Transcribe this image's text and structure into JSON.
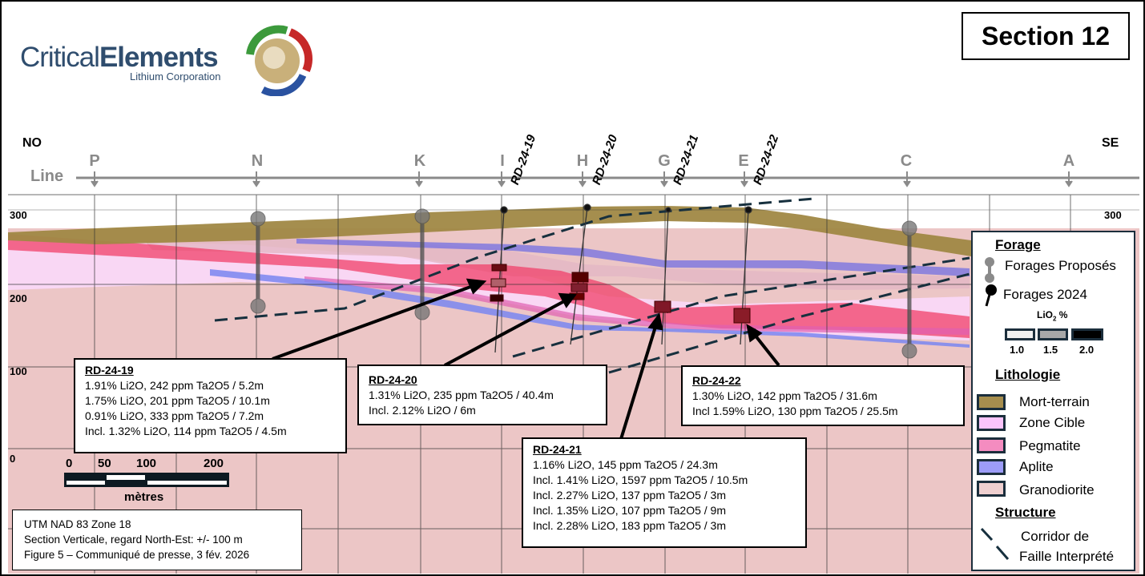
{
  "logo": {
    "name_part1": "Critical",
    "name_part2": "Elements",
    "subtitle": "Lithium Corporation"
  },
  "title": "Section 12",
  "directions": {
    "left": "NO",
    "right": "SE"
  },
  "line_axis": {
    "label": "Line",
    "letters": [
      "P",
      "N",
      "K",
      "I",
      "H",
      "G",
      "E",
      "C",
      "A"
    ]
  },
  "holes": [
    "RD-24-19",
    "RD-24-20",
    "RD-24-21",
    "RD-24-22"
  ],
  "elevations": {
    "left": [
      "300",
      "200",
      "100",
      "0"
    ],
    "right": "300"
  },
  "callouts": [
    {
      "title": "RD-24-19",
      "lines": [
        "1.91% Li2O, 242 ppm Ta2O5 / 5.2m",
        "1.75% Li2O, 201 ppm Ta2O5 / 10.1m",
        "0.91% Li2O, 333 ppm Ta2O5 / 7.2m",
        "Incl. 1.32% Li2O, 114 ppm Ta2O5 / 4.5m"
      ]
    },
    {
      "title": "RD-24-20",
      "lines": [
        "1.31% Li2O, 235 ppm Ta2O5 / 40.4m",
        "Incl. 2.12% Li2O / 6m"
      ]
    },
    {
      "title": "RD-24-21",
      "lines": [
        "1.16% Li2O, 145 ppm Ta2O5 / 24.3m",
        "Incl. 1.41% Li2O, 1597 ppm Ta2O5 / 10.5m",
        "Incl. 2.27% Li2O, 137 ppm Ta2O5 / 3m",
        "Incl. 1.35% Li2O, 107 ppm Ta2O5 / 9m",
        "Incl. 2.28% Li2O, 183 ppm Ta2O5 / 3m"
      ]
    },
    {
      "title": "RD-24-22",
      "lines": [
        "1.30% Li2O, 142 ppm Ta2O5 / 31.6m",
        "Incl 1.59% Li2O, 130 ppm Ta2O5 / 25.5m"
      ]
    }
  ],
  "scale": {
    "ticks": [
      "0",
      "50",
      "100",
      "200"
    ],
    "unit": "mètres"
  },
  "note": [
    "UTM NAD 83 Zone 18",
    "Section Verticale, regard North-Est: +/- 100 m",
    "Figure 5 – Communiqué de presse, 3 fév. 2026"
  ],
  "legend": {
    "forage_title": "Forage",
    "proposed": "Forages Proposés",
    "drilled": "Forages 2024",
    "grade_title": "LiO",
    "grade_sub": "2",
    "grade_unit": " %",
    "grades": [
      "1.0",
      "1.5",
      "2.0"
    ],
    "lithology_title": "Lithologie",
    "lithology": [
      {
        "name": "Mort-terrain",
        "color": "#a68e4e"
      },
      {
        "name": "Zone Cible",
        "color": "#fbc4fb"
      },
      {
        "name": "Pegmatite",
        "color": "#f48cc0"
      },
      {
        "name": "Aplite",
        "color": "#9c9cf8"
      },
      {
        "name": "Granodiorite",
        "color": "#efd0d0"
      }
    ],
    "structure_title": "Structure",
    "structure_line1": "Corridor de",
    "structure_line2": "Faille Interprété"
  }
}
